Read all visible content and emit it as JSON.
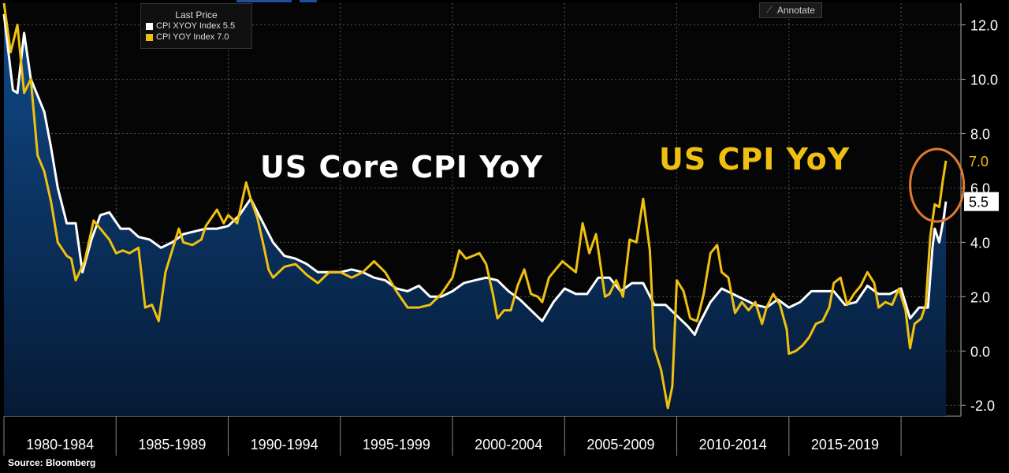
{
  "legend": {
    "title": "Last Price",
    "items": [
      {
        "label": "CPI XYOY Index 5.5",
        "color": "#ffffff"
      },
      {
        "label": "CPI YOY Index  7.0",
        "color": "#f0c010"
      }
    ]
  },
  "toolbar": {
    "annotate_label": "Annotate"
  },
  "annotations": {
    "core_label": "US Core CPI YoY",
    "core_color": "#ffffff",
    "headline_label": "US CPI YoY",
    "headline_color": "#f0c010",
    "highlight_color": "#e07a2e"
  },
  "source": "Source: Bloomberg",
  "chart_data": {
    "type": "line",
    "title": "",
    "xlabel": "",
    "ylabel": "",
    "x_start": 1980.0,
    "x_end": 2022.0,
    "ylim": [
      -2.4,
      12.8
    ],
    "y_ticks": [
      -2.0,
      0.0,
      2.0,
      4.0,
      6.0,
      8.0,
      10.0,
      12.0
    ],
    "y_tick_labels": [
      "-2.0",
      "0.0",
      "2.0",
      "4.0",
      "6.0",
      "8.0",
      "10.0",
      "12.0"
    ],
    "x_period_labels": [
      "1980-1984",
      "1985-1989",
      "1990-1994",
      "1995-1999",
      "2000-2004",
      "2005-2009",
      "2010-2014",
      "2015-2019"
    ],
    "grid": true,
    "series": [
      {
        "name": "CPI XYOY Index",
        "last": "5.5",
        "color": "#ffffff",
        "fill": true,
        "points": [
          [
            1980.0,
            12.4
          ],
          [
            1980.4,
            9.6
          ],
          [
            1980.6,
            9.5
          ],
          [
            1980.9,
            11.7
          ],
          [
            1981.2,
            10.0
          ],
          [
            1981.5,
            9.4
          ],
          [
            1981.8,
            8.8
          ],
          [
            1982.1,
            7.5
          ],
          [
            1982.4,
            6.0
          ],
          [
            1982.8,
            4.7
          ],
          [
            1983.2,
            4.7
          ],
          [
            1983.5,
            2.9
          ],
          [
            1983.9,
            4.1
          ],
          [
            1984.3,
            5.0
          ],
          [
            1984.7,
            5.1
          ],
          [
            1985.2,
            4.5
          ],
          [
            1985.6,
            4.5
          ],
          [
            1986.0,
            4.2
          ],
          [
            1986.5,
            4.1
          ],
          [
            1987.0,
            3.8
          ],
          [
            1987.5,
            4.0
          ],
          [
            1988.0,
            4.3
          ],
          [
            1988.5,
            4.4
          ],
          [
            1989.0,
            4.5
          ],
          [
            1989.5,
            4.5
          ],
          [
            1990.0,
            4.6
          ],
          [
            1990.5,
            5.0
          ],
          [
            1991.0,
            5.6
          ],
          [
            1991.5,
            4.8
          ],
          [
            1992.0,
            4.0
          ],
          [
            1992.5,
            3.5
          ],
          [
            1993.0,
            3.4
          ],
          [
            1993.5,
            3.2
          ],
          [
            1994.0,
            2.9
          ],
          [
            1994.5,
            2.9
          ],
          [
            1995.0,
            2.9
          ],
          [
            1995.5,
            3.0
          ],
          [
            1996.0,
            2.9
          ],
          [
            1996.5,
            2.7
          ],
          [
            1997.0,
            2.6
          ],
          [
            1997.5,
            2.3
          ],
          [
            1998.0,
            2.2
          ],
          [
            1998.5,
            2.4
          ],
          [
            1999.0,
            2.0
          ],
          [
            1999.5,
            2.0
          ],
          [
            2000.0,
            2.2
          ],
          [
            2000.5,
            2.5
          ],
          [
            2001.0,
            2.6
          ],
          [
            2001.5,
            2.7
          ],
          [
            2002.0,
            2.6
          ],
          [
            2002.5,
            2.2
          ],
          [
            2003.0,
            1.9
          ],
          [
            2003.5,
            1.5
          ],
          [
            2004.0,
            1.1
          ],
          [
            2004.5,
            1.8
          ],
          [
            2005.0,
            2.3
          ],
          [
            2005.5,
            2.1
          ],
          [
            2006.0,
            2.1
          ],
          [
            2006.5,
            2.7
          ],
          [
            2007.0,
            2.7
          ],
          [
            2007.5,
            2.2
          ],
          [
            2008.0,
            2.5
          ],
          [
            2008.5,
            2.5
          ],
          [
            2009.0,
            1.7
          ],
          [
            2009.5,
            1.7
          ],
          [
            2010.0,
            1.3
          ],
          [
            2010.5,
            0.9
          ],
          [
            2010.8,
            0.6
          ],
          [
            2011.0,
            1.0
          ],
          [
            2011.5,
            1.8
          ],
          [
            2012.0,
            2.3
          ],
          [
            2012.5,
            2.1
          ],
          [
            2013.0,
            1.9
          ],
          [
            2013.5,
            1.7
          ],
          [
            2014.0,
            1.6
          ],
          [
            2014.5,
            1.9
          ],
          [
            2015.0,
            1.6
          ],
          [
            2015.5,
            1.8
          ],
          [
            2016.0,
            2.2
          ],
          [
            2016.5,
            2.2
          ],
          [
            2017.0,
            2.2
          ],
          [
            2017.5,
            1.7
          ],
          [
            2018.0,
            1.8
          ],
          [
            2018.5,
            2.4
          ],
          [
            2019.0,
            2.1
          ],
          [
            2019.5,
            2.1
          ],
          [
            2020.0,
            2.3
          ],
          [
            2020.4,
            1.2
          ],
          [
            2020.8,
            1.6
          ],
          [
            2021.2,
            1.6
          ],
          [
            2021.4,
            3.8
          ],
          [
            2021.5,
            4.5
          ],
          [
            2021.7,
            4.0
          ],
          [
            2021.9,
            4.9
          ],
          [
            2022.0,
            5.5
          ]
        ]
      },
      {
        "name": "CPI YOY Index",
        "last": "7.0",
        "color": "#f0c010",
        "fill": false,
        "points": [
          [
            1980.0,
            12.8
          ],
          [
            1980.3,
            11.0
          ],
          [
            1980.6,
            12.0
          ],
          [
            1980.9,
            9.5
          ],
          [
            1981.2,
            10.0
          ],
          [
            1981.5,
            7.2
          ],
          [
            1981.8,
            6.6
          ],
          [
            1982.1,
            5.5
          ],
          [
            1982.4,
            4.0
          ],
          [
            1982.8,
            3.5
          ],
          [
            1983.0,
            3.4
          ],
          [
            1983.2,
            2.6
          ],
          [
            1983.6,
            3.3
          ],
          [
            1984.0,
            4.8
          ],
          [
            1984.3,
            4.5
          ],
          [
            1984.7,
            4.1
          ],
          [
            1985.0,
            3.6
          ],
          [
            1985.3,
            3.7
          ],
          [
            1985.6,
            3.6
          ],
          [
            1986.0,
            3.8
          ],
          [
            1986.3,
            1.6
          ],
          [
            1986.6,
            1.7
          ],
          [
            1986.9,
            1.1
          ],
          [
            1987.2,
            2.9
          ],
          [
            1987.5,
            3.7
          ],
          [
            1987.8,
            4.5
          ],
          [
            1988.0,
            4.0
          ],
          [
            1988.4,
            3.9
          ],
          [
            1988.8,
            4.1
          ],
          [
            1989.0,
            4.6
          ],
          [
            1989.5,
            5.2
          ],
          [
            1989.8,
            4.7
          ],
          [
            1990.0,
            5.0
          ],
          [
            1990.4,
            4.7
          ],
          [
            1990.8,
            6.2
          ],
          [
            1991.0,
            5.6
          ],
          [
            1991.3,
            4.9
          ],
          [
            1991.6,
            3.8
          ],
          [
            1991.8,
            3.0
          ],
          [
            1992.0,
            2.7
          ],
          [
            1992.5,
            3.1
          ],
          [
            1993.0,
            3.2
          ],
          [
            1993.5,
            2.8
          ],
          [
            1994.0,
            2.5
          ],
          [
            1994.5,
            2.9
          ],
          [
            1995.0,
            2.9
          ],
          [
            1995.5,
            2.7
          ],
          [
            1996.0,
            2.9
          ],
          [
            1996.5,
            3.3
          ],
          [
            1997.0,
            2.9
          ],
          [
            1997.5,
            2.2
          ],
          [
            1998.0,
            1.6
          ],
          [
            1998.5,
            1.6
          ],
          [
            1999.0,
            1.7
          ],
          [
            1999.5,
            2.1
          ],
          [
            2000.0,
            2.7
          ],
          [
            2000.3,
            3.7
          ],
          [
            2000.6,
            3.4
          ],
          [
            2000.9,
            3.5
          ],
          [
            2001.2,
            3.6
          ],
          [
            2001.5,
            3.2
          ],
          [
            2001.8,
            2.1
          ],
          [
            2002.0,
            1.2
          ],
          [
            2002.3,
            1.5
          ],
          [
            2002.6,
            1.5
          ],
          [
            2002.9,
            2.4
          ],
          [
            2003.2,
            3.0
          ],
          [
            2003.5,
            2.1
          ],
          [
            2003.8,
            2.0
          ],
          [
            2004.0,
            1.8
          ],
          [
            2004.3,
            2.7
          ],
          [
            2004.6,
            3.0
          ],
          [
            2004.9,
            3.3
          ],
          [
            2005.2,
            3.1
          ],
          [
            2005.5,
            2.9
          ],
          [
            2005.8,
            4.7
          ],
          [
            2006.1,
            3.6
          ],
          [
            2006.4,
            4.3
          ],
          [
            2006.8,
            2.0
          ],
          [
            2007.0,
            2.1
          ],
          [
            2007.3,
            2.6
          ],
          [
            2007.6,
            2.0
          ],
          [
            2007.9,
            4.1
          ],
          [
            2008.2,
            4.0
          ],
          [
            2008.5,
            5.6
          ],
          [
            2008.8,
            3.7
          ],
          [
            2009.0,
            0.1
          ],
          [
            2009.3,
            -0.7
          ],
          [
            2009.6,
            -2.1
          ],
          [
            2009.8,
            -1.3
          ],
          [
            2010.0,
            2.6
          ],
          [
            2010.3,
            2.2
          ],
          [
            2010.6,
            1.2
          ],
          [
            2010.9,
            1.1
          ],
          [
            2011.2,
            2.1
          ],
          [
            2011.5,
            3.6
          ],
          [
            2011.8,
            3.9
          ],
          [
            2012.0,
            2.9
          ],
          [
            2012.3,
            2.7
          ],
          [
            2012.6,
            1.4
          ],
          [
            2012.9,
            1.8
          ],
          [
            2013.2,
            1.5
          ],
          [
            2013.5,
            1.8
          ],
          [
            2013.8,
            1.0
          ],
          [
            2014.0,
            1.6
          ],
          [
            2014.3,
            2.1
          ],
          [
            2014.6,
            1.7
          ],
          [
            2014.9,
            0.8
          ],
          [
            2015.0,
            -0.1
          ],
          [
            2015.3,
            0.0
          ],
          [
            2015.6,
            0.2
          ],
          [
            2015.9,
            0.5
          ],
          [
            2016.2,
            1.0
          ],
          [
            2016.5,
            1.1
          ],
          [
            2016.8,
            1.6
          ],
          [
            2017.0,
            2.5
          ],
          [
            2017.3,
            2.7
          ],
          [
            2017.6,
            1.7
          ],
          [
            2017.9,
            2.1
          ],
          [
            2018.2,
            2.4
          ],
          [
            2018.5,
            2.9
          ],
          [
            2018.8,
            2.5
          ],
          [
            2019.0,
            1.6
          ],
          [
            2019.3,
            1.8
          ],
          [
            2019.6,
            1.7
          ],
          [
            2019.9,
            2.3
          ],
          [
            2020.2,
            1.5
          ],
          [
            2020.4,
            0.1
          ],
          [
            2020.6,
            1.0
          ],
          [
            2020.9,
            1.2
          ],
          [
            2021.1,
            1.7
          ],
          [
            2021.3,
            4.2
          ],
          [
            2021.5,
            5.4
          ],
          [
            2021.7,
            5.3
          ],
          [
            2021.85,
            6.2
          ],
          [
            2022.0,
            7.0
          ]
        ]
      }
    ]
  }
}
